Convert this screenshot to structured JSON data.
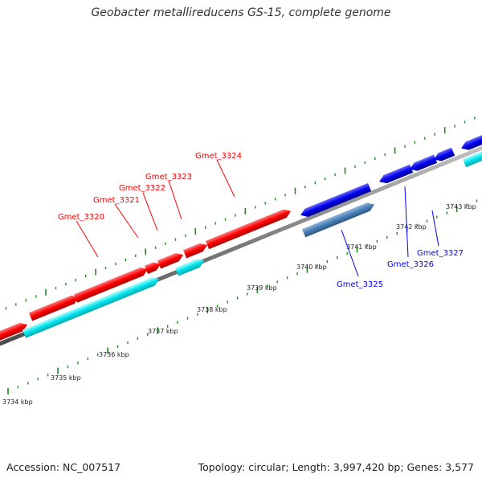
{
  "title": "Geobacter metallireducens GS-15, complete genome",
  "footer": {
    "accession": "Accession: NC_007517",
    "topology": "Topology: circular; Length: 3,997,420 bp; Genes: 3,577"
  },
  "colors": {
    "forward_gene": "#ff0000",
    "forward_cds_feature": "#00e5ee",
    "reverse_gene": "#0000ee",
    "reverse_cds_feature": "#4a7fb5",
    "backbone": "#888888",
    "gc_ticks": "#1f8a1f"
  },
  "scale_labels": [
    "3734 kbp",
    "3735 kbp",
    "3736 kbp",
    "3737 kbp",
    "3738 kbp",
    "3739 kbp",
    "3740 kbp",
    "3741 kbp",
    "3742 kbp",
    "3743 kbp"
  ],
  "gene_labels": {
    "forward": [
      "Gmet_3320",
      "Gmet_3321",
      "Gmet_3322",
      "Gmet_3323",
      "Gmet_3324"
    ],
    "reverse": [
      "Gmet_3325",
      "Gmet_3326",
      "Gmet_3327"
    ]
  }
}
